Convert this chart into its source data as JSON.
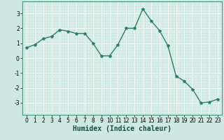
{
  "x": [
    0,
    1,
    2,
    3,
    4,
    5,
    6,
    7,
    8,
    9,
    10,
    11,
    12,
    13,
    14,
    15,
    16,
    17,
    18,
    19,
    20,
    21,
    22,
    23
  ],
  "y": [
    0.7,
    0.9,
    1.3,
    1.45,
    1.9,
    1.8,
    1.65,
    1.65,
    1.0,
    0.15,
    0.15,
    0.9,
    2.0,
    2.0,
    3.3,
    2.5,
    1.85,
    0.85,
    -1.2,
    -1.55,
    -2.1,
    -3.0,
    -2.95,
    -2.75
  ],
  "line_color": "#2e7d6e",
  "marker": "*",
  "markersize": 3,
  "linewidth": 1.0,
  "xlabel": "Humidex (Indice chaleur)",
  "xlabel_fontsize": 7,
  "xlabel_fontweight": "bold",
  "bg_color": "#cce8e0",
  "grid_color": "#e8f5f0",
  "grid_major_color": "#ffffff",
  "ylim": [
    -3.8,
    3.8
  ],
  "xlim": [
    -0.5,
    23.5
  ],
  "yticks": [
    -3,
    -2,
    -1,
    0,
    1,
    2,
    3
  ],
  "xticks": [
    0,
    1,
    2,
    3,
    4,
    5,
    6,
    7,
    8,
    9,
    10,
    11,
    12,
    13,
    14,
    15,
    16,
    17,
    18,
    19,
    20,
    21,
    22,
    23
  ],
  "tick_fontsize": 5.5,
  "spine_color": "#4a9080"
}
